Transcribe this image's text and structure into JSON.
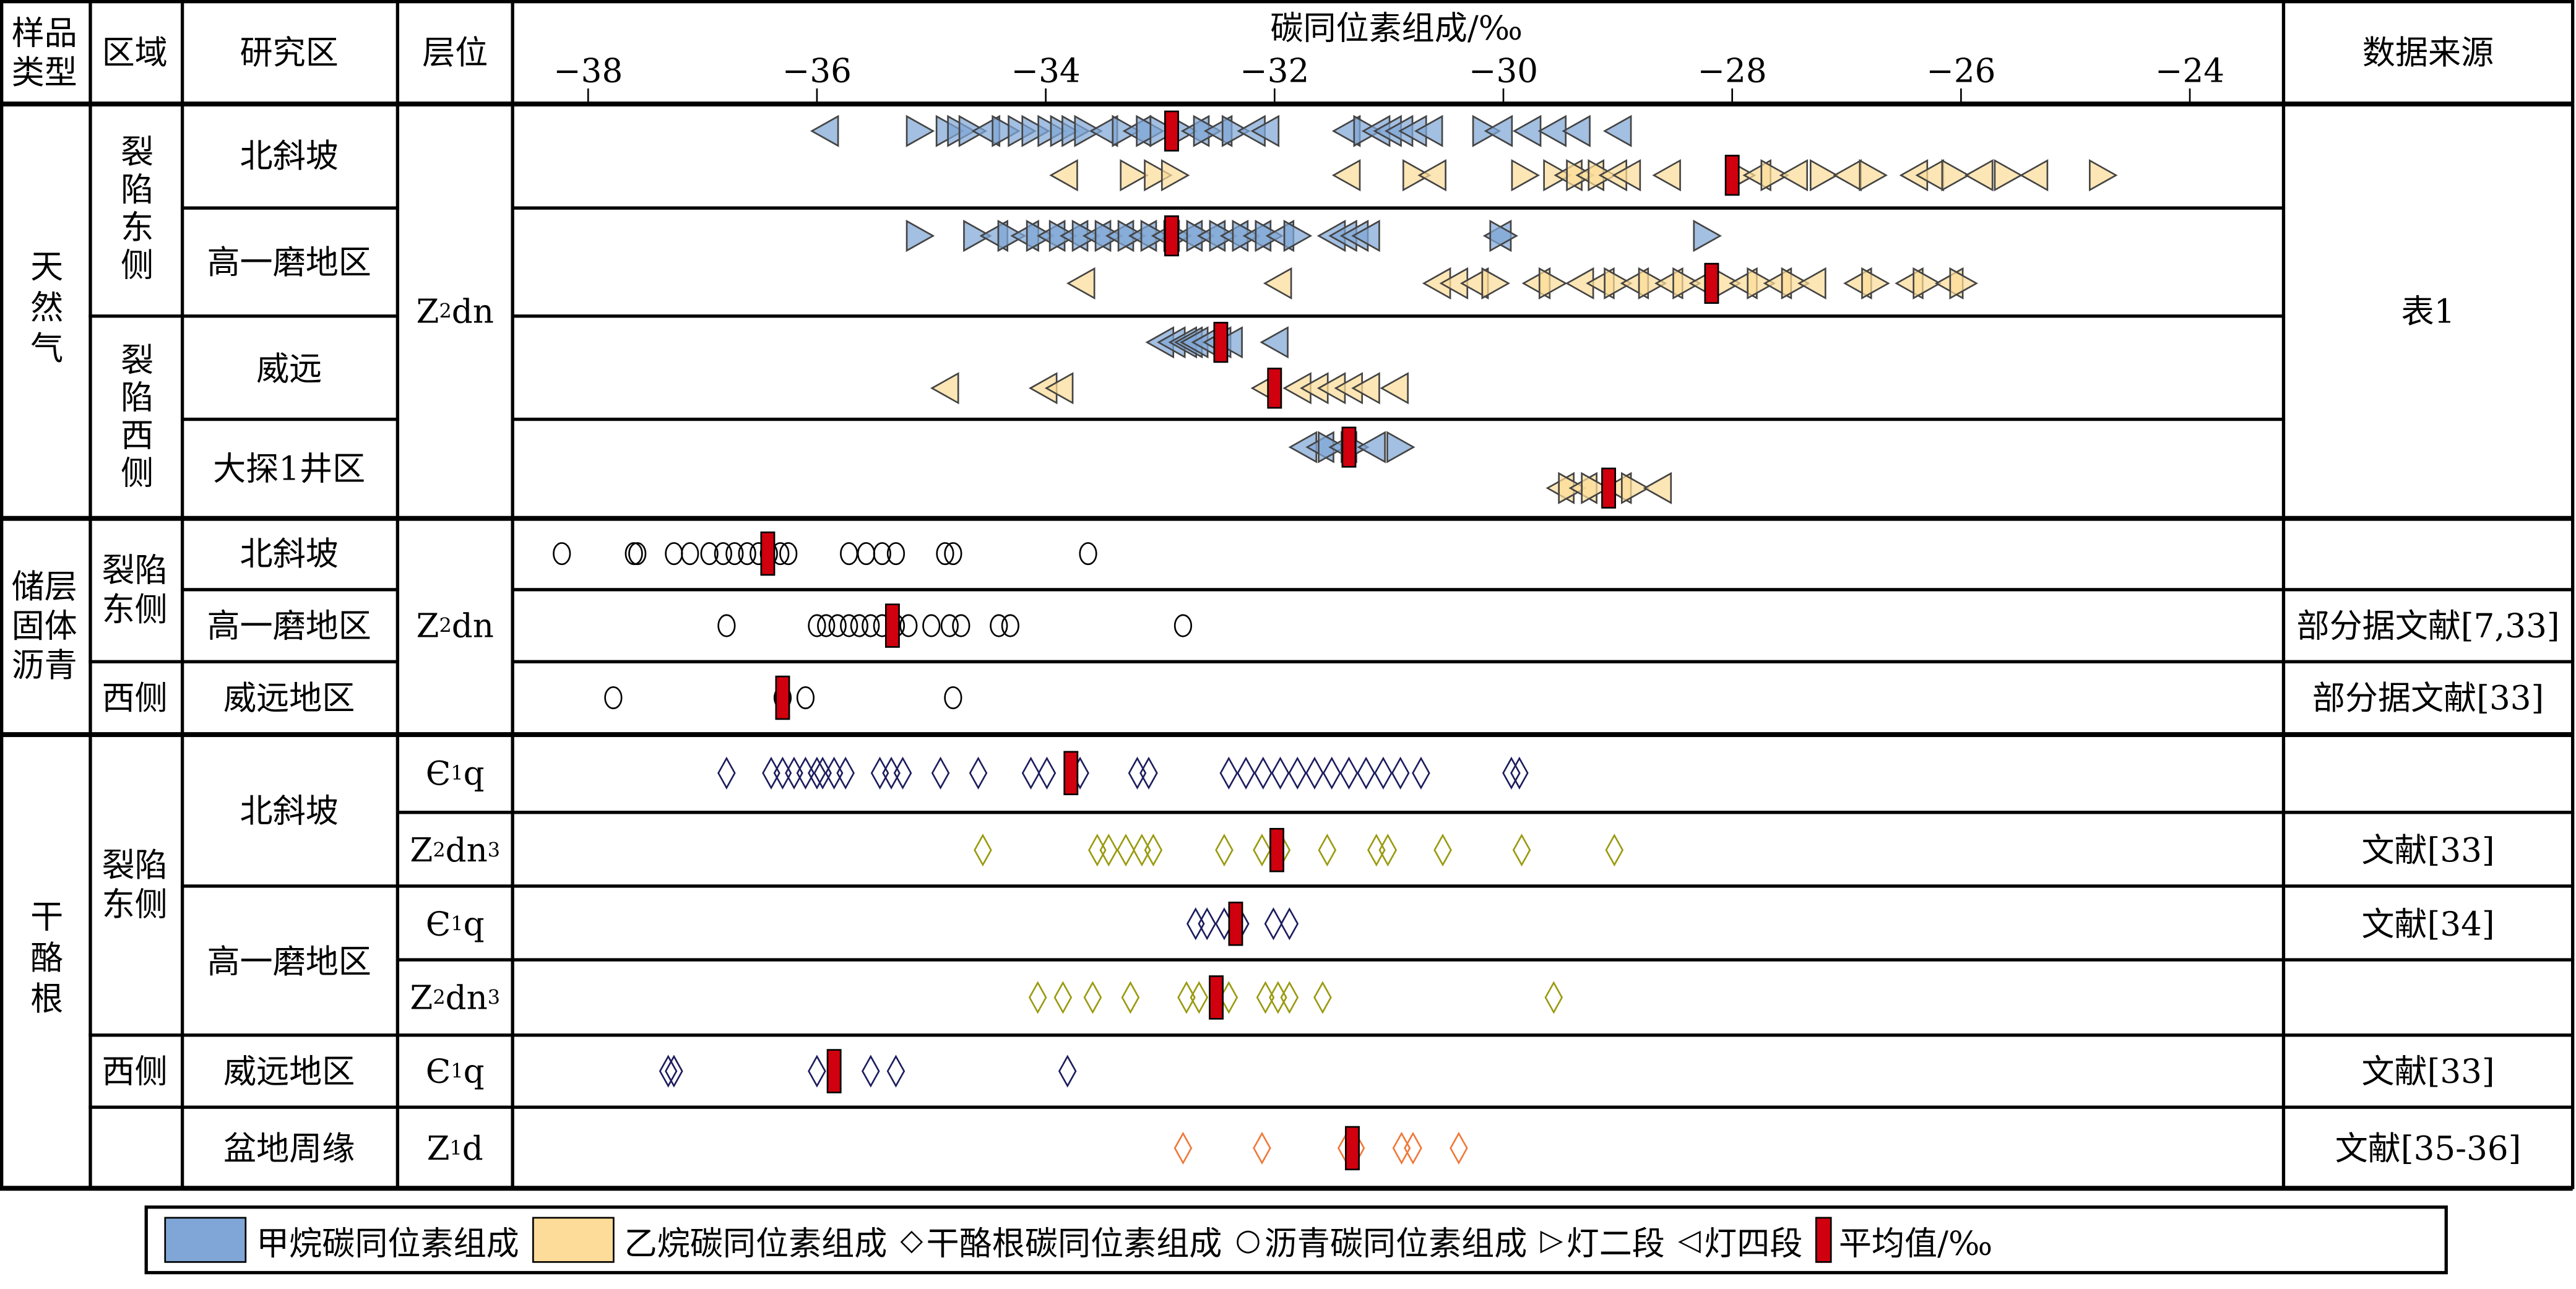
{
  "header": {
    "sample_type": "样品类型",
    "region": "区域",
    "study_area": "研究区",
    "strata": "层位",
    "data_source": "数据来源"
  },
  "table": {
    "gas": {
      "type": "天然气",
      "east": "裂陷东侧",
      "west": "裂陷西侧",
      "areas": [
        "北斜坡",
        "高一磨地区",
        "威远",
        "大探1井区"
      ],
      "strata": {
        "base": "Z",
        "sub": "2",
        "tail": "dn"
      },
      "source": "表1"
    },
    "bitumen": {
      "type": "储层固体沥青",
      "east": "裂陷东侧",
      "west": "西侧",
      "areas": [
        "北斜坡",
        "高一磨地区",
        "威远地区"
      ],
      "strata": {
        "base": "Z",
        "sub": "2",
        "tail": "dn"
      },
      "sources": [
        "",
        "部分据文献[7,33]",
        "部分据文献[33]"
      ]
    },
    "kerogen": {
      "type": "干酪根",
      "east": "裂陷东侧",
      "west": "西侧",
      "areas": [
        "北斜坡",
        "高一磨地区",
        "威远地区",
        "盆地周缘"
      ],
      "strata": [
        {
          "base": "Є",
          "sub": "1",
          "tail": "q",
          "tail_sub": ""
        },
        {
          "base": "Z",
          "sub": "2",
          "tail": "dn",
          "tail_sub": "3"
        },
        {
          "base": "Є",
          "sub": "1",
          "tail": "q",
          "tail_sub": ""
        },
        {
          "base": "Z",
          "sub": "2",
          "tail": "dn",
          "tail_sub": "3"
        },
        {
          "base": "Є",
          "sub": "1",
          "tail": "q",
          "tail_sub": ""
        },
        {
          "base": "Z",
          "sub": "1",
          "tail": "d",
          "tail_sub": ""
        }
      ],
      "sources": [
        "",
        "文献[33]",
        "文献[34]",
        "",
        "文献[33]",
        "文献[35-36]"
      ]
    }
  },
  "legend": {
    "methane": "甲烷碳同位素组成",
    "ethane": "乙烷碳同位素组成",
    "kerogen_symbol": "◇",
    "kerogen": "干酪根碳同位素组成",
    "bitumen_symbol": "○",
    "bitumen": "沥青碳同位素组成",
    "deng2_symbol": "▷",
    "deng2": "灯二段",
    "deng4_symbol": "◁",
    "deng4": "灯四段",
    "mean": "平均值/‰"
  },
  "colors": {
    "methane": "#7fa6d6",
    "ethane": "#fcdc98",
    "kerogen_cambrian": "#1c1c5e",
    "kerogen_deng": "#9a9a10",
    "kerogen_doushantuo": "#f07838",
    "mean": "#d0000e"
  },
  "chart_data": {
    "type": "scatter",
    "title": "碳同位素组成/‰",
    "xlabel": "碳同位素组成/‰",
    "xlim": [
      -38.65,
      -23.2
    ],
    "xticks": [
      -38,
      -36,
      -34,
      -32,
      -30,
      -28,
      -26,
      -24
    ],
    "xtick_labels": [
      "−38",
      "−36",
      "−34",
      "−32",
      "−30",
      "−28",
      "−26",
      "−24"
    ],
    "gas_rows": [
      {
        "area": "北斜坡",
        "methane_mean": -32.9,
        "ethane_mean": -28.0,
        "methane": [
          [
            -35.93,
            "L"
          ],
          [
            -35.1,
            "R"
          ],
          [
            -34.84,
            "R"
          ],
          [
            -34.74,
            "R"
          ],
          [
            -34.64,
            "R"
          ],
          [
            -34.52,
            "L"
          ],
          [
            -34.35,
            "R"
          ],
          [
            -34.21,
            "R"
          ],
          [
            -34.09,
            "R"
          ],
          [
            -33.95,
            "R"
          ],
          [
            -33.84,
            "R"
          ],
          [
            -33.74,
            "R"
          ],
          [
            -33.63,
            "R"
          ],
          [
            -33.49,
            "L"
          ],
          [
            -33.3,
            "R"
          ],
          [
            -33.2,
            "L"
          ],
          [
            -33.09,
            "R"
          ],
          [
            -32.97,
            "R"
          ],
          [
            -32.8,
            "R"
          ],
          [
            -32.69,
            "L"
          ],
          [
            -32.59,
            "R"
          ],
          [
            -32.49,
            "L"
          ],
          [
            -32.34,
            "R"
          ],
          [
            -32.2,
            "L"
          ],
          [
            -32.08,
            "L"
          ],
          [
            -31.37,
            "L"
          ],
          [
            -31.19,
            "R"
          ],
          [
            -31.11,
            "L"
          ],
          [
            -31.01,
            "L"
          ],
          [
            -30.91,
            "L"
          ],
          [
            -30.79,
            "L"
          ],
          [
            -30.65,
            "L"
          ],
          [
            -30.15,
            "R"
          ],
          [
            -30.04,
            "L"
          ],
          [
            -29.79,
            "L"
          ],
          [
            -29.57,
            "L"
          ],
          [
            -29.36,
            "L"
          ],
          [
            -29.0,
            "L"
          ]
        ],
        "ethane": [
          [
            -33.84,
            "L"
          ],
          [
            -33.23,
            "R"
          ],
          [
            -33.02,
            "R"
          ],
          [
            -32.87,
            "R"
          ],
          [
            -31.37,
            "L"
          ],
          [
            -30.76,
            "R"
          ],
          [
            -30.62,
            "L"
          ],
          [
            -29.81,
            "R"
          ],
          [
            -29.53,
            "R"
          ],
          [
            -29.43,
            "L"
          ],
          [
            -29.33,
            "R"
          ],
          [
            -29.24,
            "L"
          ],
          [
            -29.14,
            "R"
          ],
          [
            -29.04,
            "L"
          ],
          [
            -28.92,
            "L"
          ],
          [
            -28.57,
            "L"
          ],
          [
            -27.92,
            "R"
          ],
          [
            -27.78,
            "L"
          ],
          [
            -27.63,
            "R"
          ],
          [
            -27.46,
            "L"
          ],
          [
            -27.2,
            "R"
          ],
          [
            -26.99,
            "L"
          ],
          [
            -26.77,
            "R"
          ],
          [
            -26.41,
            "L"
          ],
          [
            -26.27,
            "L"
          ],
          [
            -26.05,
            "R"
          ],
          [
            -25.84,
            "L"
          ],
          [
            -25.59,
            "R"
          ],
          [
            -25.36,
            "L"
          ],
          [
            -24.76,
            "R"
          ]
        ]
      },
      {
        "area": "高一磨地区",
        "methane_mean": -32.9,
        "ethane_mean": -28.18,
        "methane": [
          [
            -35.1,
            "R"
          ],
          [
            -34.6,
            "R"
          ],
          [
            -34.45,
            "L"
          ],
          [
            -34.3,
            "R"
          ],
          [
            -34.18,
            "L"
          ],
          [
            -34.05,
            "R"
          ],
          [
            -33.95,
            "L"
          ],
          [
            -33.85,
            "R"
          ],
          [
            -33.75,
            "L"
          ],
          [
            -33.65,
            "R"
          ],
          [
            -33.55,
            "L"
          ],
          [
            -33.45,
            "R"
          ],
          [
            -33.35,
            "L"
          ],
          [
            -33.25,
            "R"
          ],
          [
            -33.15,
            "L"
          ],
          [
            -33.05,
            "R"
          ],
          [
            -32.95,
            "L"
          ],
          [
            -32.85,
            "R"
          ],
          [
            -32.75,
            "L"
          ],
          [
            -32.65,
            "R"
          ],
          [
            -32.55,
            "L"
          ],
          [
            -32.45,
            "R"
          ],
          [
            -32.35,
            "L"
          ],
          [
            -32.25,
            "R"
          ],
          [
            -32.15,
            "L"
          ],
          [
            -32.05,
            "R"
          ],
          [
            -31.95,
            "L"
          ],
          [
            -31.8,
            "R"
          ],
          [
            -31.5,
            "L"
          ],
          [
            -31.4,
            "L"
          ],
          [
            -31.3,
            "L"
          ],
          [
            -31.2,
            "L"
          ],
          [
            -30.05,
            "L"
          ],
          [
            -30.0,
            "R"
          ],
          [
            -28.22,
            "R"
          ]
        ],
        "ethane": [
          [
            -33.69,
            "L"
          ],
          [
            -31.97,
            "L"
          ],
          [
            -30.58,
            "L"
          ],
          [
            -30.43,
            "L"
          ],
          [
            -30.25,
            "L"
          ],
          [
            -30.07,
            "R"
          ],
          [
            -29.71,
            "L"
          ],
          [
            -29.57,
            "R"
          ],
          [
            -29.33,
            "L"
          ],
          [
            -29.15,
            "L"
          ],
          [
            -29.0,
            "R"
          ],
          [
            -28.85,
            "L"
          ],
          [
            -28.7,
            "R"
          ],
          [
            -28.55,
            "L"
          ],
          [
            -28.4,
            "R"
          ],
          [
            -28.25,
            "L"
          ],
          [
            -28.05,
            "R"
          ],
          [
            -27.9,
            "L"
          ],
          [
            -27.75,
            "R"
          ],
          [
            -27.6,
            "L"
          ],
          [
            -27.45,
            "R"
          ],
          [
            -27.3,
            "L"
          ],
          [
            -26.9,
            "L"
          ],
          [
            -26.75,
            "R"
          ],
          [
            -26.45,
            "L"
          ],
          [
            -26.3,
            "R"
          ],
          [
            -26.1,
            "L"
          ],
          [
            -25.98,
            "R"
          ]
        ]
      },
      {
        "area": "威远",
        "methane_mean": -32.47,
        "ethane_mean": -32.0,
        "methane": [
          [
            -33.0,
            "L"
          ],
          [
            -32.9,
            "L"
          ],
          [
            -32.8,
            "L"
          ],
          [
            -32.75,
            "L"
          ],
          [
            -32.7,
            "L"
          ],
          [
            -32.6,
            "L"
          ],
          [
            -32.5,
            "L"
          ],
          [
            -32.4,
            "L"
          ],
          [
            -32.0,
            "L"
          ]
        ],
        "ethane": [
          [
            -34.88,
            "L"
          ],
          [
            -34.02,
            "L"
          ],
          [
            -33.88,
            "L"
          ],
          [
            -32.08,
            "L"
          ],
          [
            -31.8,
            "L"
          ],
          [
            -31.65,
            "L"
          ],
          [
            -31.5,
            "L"
          ],
          [
            -31.35,
            "L"
          ],
          [
            -31.2,
            "L"
          ],
          [
            -30.95,
            "L"
          ]
        ]
      },
      {
        "area": "大探1井区",
        "methane_mean": -31.35,
        "ethane_mean": -29.08,
        "methane": [
          [
            -31.75,
            "L"
          ],
          [
            -31.6,
            "L"
          ],
          [
            -31.5,
            "R"
          ],
          [
            -31.4,
            "L"
          ],
          [
            -31.3,
            "R"
          ],
          [
            -31.15,
            "L"
          ],
          [
            -30.9,
            "R"
          ]
        ],
        "ethane": [
          [
            -29.5,
            "L"
          ],
          [
            -29.4,
            "R"
          ],
          [
            -29.3,
            "L"
          ],
          [
            -29.2,
            "R"
          ],
          [
            -29.0,
            "L"
          ],
          [
            -28.85,
            "R"
          ],
          [
            -28.65,
            "L"
          ]
        ]
      }
    ],
    "bitumen_rows": [
      {
        "area": "北斜坡",
        "mean": -36.43,
        "values": [
          -38.23,
          -37.6,
          -37.57,
          -37.25,
          -37.11,
          -36.94,
          -36.82,
          -36.72,
          -36.61,
          -36.51,
          -36.42,
          -36.32,
          -36.25,
          -35.72,
          -35.57,
          -35.43,
          -35.31,
          -34.88,
          -34.81,
          -33.63
        ]
      },
      {
        "area": "高一磨地区",
        "mean": -35.34,
        "values": [
          -36.79,
          -36.0,
          -35.92,
          -35.82,
          -35.72,
          -35.63,
          -35.53,
          -35.43,
          -35.31,
          -35.2,
          -35.0,
          -34.84,
          -34.74,
          -34.41,
          -34.31,
          -32.8
        ]
      },
      {
        "area": "威远地区",
        "mean": -36.3,
        "values": [
          -37.78,
          -36.3,
          -36.1,
          -34.81
        ]
      }
    ],
    "kerogen_rows": [
      {
        "area": "北斜坡",
        "strata": "Є1q",
        "color": "kerogen_cambrian",
        "mean": -33.78,
        "values": [
          -36.79,
          -36.4,
          -36.3,
          -36.2,
          -36.1,
          -36.0,
          -35.95,
          -35.85,
          -35.75,
          -35.45,
          -35.35,
          -35.25,
          -34.92,
          -34.59,
          -34.13,
          -33.99,
          -33.7,
          -33.2,
          -33.1,
          -32.4,
          -32.25,
          -32.1,
          -31.95,
          -31.8,
          -31.65,
          -31.5,
          -31.35,
          -31.2,
          -31.05,
          -30.9,
          -30.72,
          -29.93,
          -29.86
        ]
      },
      {
        "area": "北斜坡",
        "strata": "Z2dn3",
        "color": "kerogen_deng",
        "mean": -31.98,
        "values": [
          -34.55,
          -33.55,
          -33.45,
          -33.3,
          -33.16,
          -33.06,
          -32.44,
          -32.11,
          -31.94,
          -31.54,
          -31.11,
          -31.01,
          -30.53,
          -29.84,
          -29.03
        ]
      },
      {
        "area": "高一磨地区",
        "strata": "Є1q",
        "color": "kerogen_cambrian",
        "mean": -32.34,
        "values": [
          -32.69,
          -32.59,
          -32.44,
          -32.3,
          -32.01,
          -31.87
        ]
      },
      {
        "area": "高一磨地区",
        "strata": "Z2dn3",
        "color": "kerogen_deng",
        "mean": -32.51,
        "values": [
          -34.07,
          -33.85,
          -33.59,
          -33.26,
          -32.77,
          -32.66,
          -32.4,
          -32.08,
          -31.97,
          -31.87,
          -31.58,
          -29.56
        ]
      },
      {
        "area": "威远地区",
        "strata": "Є1q",
        "color": "kerogen_cambrian",
        "mean": -35.85,
        "values": [
          -37.3,
          -37.25,
          -36.0,
          -35.53,
          -35.31,
          -33.81
        ]
      },
      {
        "area": "盆地周缘",
        "strata": "Z1d",
        "color": "kerogen_doushantuo",
        "mean": -31.32,
        "values": [
          -32.8,
          -32.11,
          -31.37,
          -31.29,
          -30.89,
          -30.79,
          -30.39
        ]
      }
    ]
  }
}
